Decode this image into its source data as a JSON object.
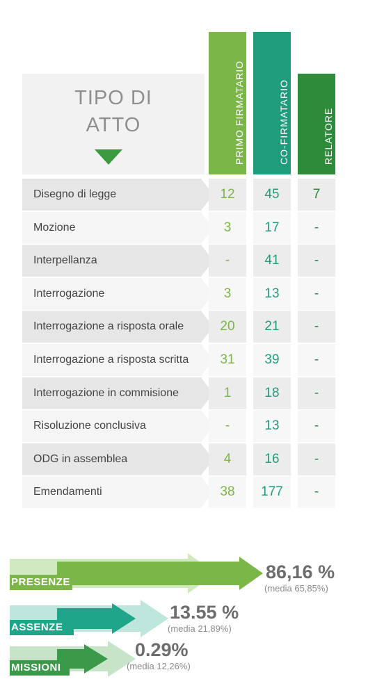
{
  "table": {
    "header_title_line1": "TIPO DI",
    "header_title_line2": "ATTO",
    "columns": [
      {
        "label": "PRIMO FIRMATARIO",
        "color": "#7ab648"
      },
      {
        "label": "CO-FIRMATARIO",
        "color": "#1f9c7b"
      },
      {
        "label": "RELATORE",
        "color": "#2e8b3a"
      }
    ],
    "rows": [
      {
        "label": "Disegno di legge",
        "values": [
          "12",
          "45",
          "7"
        ]
      },
      {
        "label": "Mozione",
        "values": [
          "3",
          "17",
          "-"
        ]
      },
      {
        "label": "Interpellanza",
        "values": [
          "-",
          "41",
          "-"
        ]
      },
      {
        "label": "Interrogazione",
        "values": [
          "3",
          "13",
          "-"
        ]
      },
      {
        "label": "Interrogazione a risposta orale",
        "values": [
          "20",
          "21",
          "-"
        ]
      },
      {
        "label": "Interrogazione a risposta scritta",
        "values": [
          "31",
          "39",
          "-"
        ]
      },
      {
        "label": "Interrogazione in commisione",
        "values": [
          "1",
          "18",
          "-"
        ]
      },
      {
        "label": "Risoluzione conclusiva",
        "values": [
          "-",
          "13",
          "-"
        ]
      },
      {
        "label": "ODG in assemblea",
        "values": [
          "4",
          "16",
          "-"
        ]
      },
      {
        "label": "Emendamenti",
        "values": [
          "38",
          "177",
          "-"
        ]
      }
    ]
  },
  "stats": [
    {
      "label": "PRESENZE",
      "value_text": "86,16 %",
      "value": 86.16,
      "media_text": "(media 65,85%)",
      "media": 65.85,
      "color": "#7ab648",
      "light": "#cfe8c0"
    },
    {
      "label": "ASSENZE",
      "value_text": "13.55 %",
      "value": 13.55,
      "media_text": "(media 21,89%)",
      "media": 21.89,
      "color": "#1fa68a",
      "light": "#bfe6dc"
    },
    {
      "label": "MISSIONI",
      "value_text": "0.29%",
      "value": 0.29,
      "media_text": "(media 12,26%)",
      "media": 12.26,
      "color": "#3a9a4a",
      "light": "#c7e4c8"
    }
  ],
  "chart_data": {
    "type": "table",
    "columns": [
      "PRIMO FIRMATARIO",
      "CO-FIRMATARIO",
      "RELATORE"
    ],
    "rows": [
      "Disegno di legge",
      "Mozione",
      "Interpellanza",
      "Interrogazione",
      "Interrogazione a risposta orale",
      "Interrogazione a risposta scritta",
      "Interrogazione in commisione",
      "Risoluzione conclusiva",
      "ODG in assemblea",
      "Emendamenti"
    ],
    "values": [
      [
        "12",
        "45",
        "7"
      ],
      [
        "3",
        "17",
        "-"
      ],
      [
        "-",
        "41",
        "-"
      ],
      [
        "3",
        "13",
        "-"
      ],
      [
        "20",
        "21",
        "-"
      ],
      [
        "31",
        "39",
        "-"
      ],
      [
        "1",
        "18",
        "-"
      ],
      [
        "-",
        "13",
        "-"
      ],
      [
        "4",
        "16",
        "-"
      ],
      [
        "38",
        "177",
        "-"
      ]
    ]
  }
}
